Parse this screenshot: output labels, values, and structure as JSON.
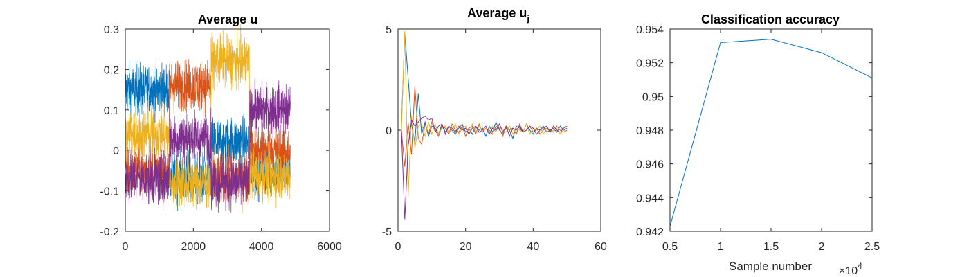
{
  "chart_data": [
    {
      "type": "line",
      "title": "Average u",
      "xlabel": "",
      "ylabel": "",
      "xlim": [
        0,
        6000
      ],
      "ylim": [
        -0.2,
        0.3
      ],
      "xticks": [
        "0",
        "2000",
        "4000",
        "6000"
      ],
      "yticks": [
        "-0.2",
        "-0.1",
        "0",
        "0.1",
        "0.2",
        "0.3"
      ],
      "segments": [
        0,
        1290,
        2520,
        3650,
        4850
      ],
      "noise": 0.045,
      "series": [
        {
          "name": "series 1",
          "color": "#0072BD",
          "levels": [
            0.15,
            -0.07,
            0.02,
            -0.05
          ]
        },
        {
          "name": "series 2",
          "color": "#D95319",
          "levels": [
            -0.05,
            0.16,
            -0.07,
            0.0
          ]
        },
        {
          "name": "series 3",
          "color": "#EDB120",
          "levels": [
            0.04,
            -0.08,
            0.22,
            -0.06
          ]
        },
        {
          "name": "series 4",
          "color": "#7E2F8E",
          "levels": [
            -0.07,
            0.03,
            -0.08,
            0.1
          ]
        }
      ]
    },
    {
      "type": "line",
      "title": "Average u",
      "title_sub": "j",
      "xlabel": "",
      "ylabel": "",
      "xlim": [
        0,
        60
      ],
      "ylim": [
        -5,
        5
      ],
      "xticks": [
        "0",
        "20",
        "40",
        "60"
      ],
      "yticks": [
        "-5",
        "0",
        "5"
      ],
      "x": [
        1,
        2,
        3,
        4,
        5,
        6,
        7,
        8,
        9,
        10,
        11,
        12,
        13,
        14,
        15,
        16,
        17,
        18,
        19,
        20,
        21,
        22,
        23,
        24,
        25,
        26,
        27,
        28,
        29,
        30,
        31,
        32,
        33,
        34,
        35,
        36,
        37,
        38,
        39,
        40,
        41,
        42,
        43,
        44,
        45,
        46,
        47,
        48,
        49,
        50
      ],
      "series": [
        {
          "name": "series 1",
          "color": "#0072BD",
          "values": [
            0.2,
            4.8,
            2.6,
            0.3,
            -0.6,
            1.8,
            -0.2,
            0.4,
            -0.3,
            0.2,
            0.1,
            -0.2,
            0.3,
            -0.1,
            0.2,
            0.0,
            -0.2,
            0.1,
            0.3,
            -0.1,
            0.1,
            -0.2,
            0.2,
            0.0,
            0.1,
            -0.3,
            0.2,
            -0.1,
            0.4,
            0.0,
            -0.2,
            0.1,
            0.0,
            -0.4,
            0.2,
            0.1,
            -0.1,
            0.3,
            0.0,
            -0.2,
            0.1,
            0.0,
            0.2,
            -0.1,
            0.0,
            0.1,
            -0.1,
            0.2,
            0.0,
            0.1
          ]
        },
        {
          "name": "series 2",
          "color": "#D95319",
          "values": [
            0.0,
            -1.8,
            0.4,
            -1.2,
            2.2,
            -0.4,
            -0.7,
            0.3,
            -0.2,
            0.4,
            0.0,
            -0.3,
            0.2,
            0.1,
            -0.2,
            0.3,
            0.0,
            -0.1,
            0.2,
            -0.3,
            0.1,
            0.2,
            -0.2,
            0.3,
            -0.1,
            0.1,
            0.0,
            -0.2,
            0.2,
            0.1,
            -0.3,
            0.2,
            0.0,
            0.1,
            -0.2,
            0.3,
            -0.1,
            0.0,
            0.2,
            -0.1,
            0.1,
            -0.2,
            0.0,
            0.1,
            0.0,
            -0.1,
            0.2,
            0.0,
            -0.1,
            0.0
          ]
        },
        {
          "name": "series 3",
          "color": "#EDB120",
          "values": [
            0.0,
            4.9,
            -3.3,
            0.7,
            -0.9,
            0.2,
            0.3,
            -0.3,
            0.4,
            -0.2,
            0.3,
            -0.2,
            0.1,
            0.2,
            -0.1,
            0.0,
            0.3,
            -0.2,
            0.1,
            0.2,
            -0.2,
            0.3,
            -0.1,
            0.2,
            0.0,
            0.1,
            -0.2,
            0.2,
            -0.1,
            0.3,
            0.0,
            -0.1,
            0.2,
            -0.2,
            0.1,
            0.0,
            -0.1,
            0.3,
            -0.2,
            0.1,
            0.0,
            0.2,
            -0.2,
            0.1,
            -0.1,
            0.0,
            0.1,
            -0.2,
            0.0,
            -0.1
          ]
        },
        {
          "name": "series 4",
          "color": "#7E2F8E",
          "values": [
            0.0,
            -4.4,
            -0.8,
            0.5,
            0.2,
            0.4,
            0.6,
            0.7,
            0.5,
            0.6,
            -0.1,
            0.2,
            0.3,
            -0.2,
            0.2,
            0.1,
            -0.1,
            0.2,
            0.0,
            0.1,
            -0.2,
            0.1,
            0.2,
            -0.1,
            0.0,
            0.2,
            -0.2,
            0.1,
            0.0,
            0.3,
            -0.1,
            0.2,
            -0.3,
            0.1,
            0.0,
            0.2,
            -0.1,
            0.0,
            0.2,
            0.1,
            -0.2,
            0.0,
            0.1,
            0.2,
            -0.1,
            0.2,
            0.0,
            -0.1,
            0.1,
            0.2
          ]
        }
      ]
    },
    {
      "type": "line",
      "title": "Classification accuracy",
      "xlabel": "Sample number",
      "x_exponent": "10",
      "x_exponent_power": "4",
      "ylabel": "",
      "xlim": [
        0.5,
        2.5
      ],
      "ylim": [
        0.942,
        0.954
      ],
      "xticks": [
        "0.5",
        "1",
        "1.5",
        "2",
        "2.5"
      ],
      "yticks": [
        "0.942",
        "0.944",
        "0.946",
        "0.948",
        "0.95",
        "0.952",
        "0.954"
      ],
      "series": [
        {
          "name": "accuracy",
          "color": "#0072BD",
          "x": [
            0.5,
            1.0,
            1.5,
            2.0,
            2.5
          ],
          "values": [
            0.9423,
            0.9532,
            0.9534,
            0.9526,
            0.9511
          ]
        }
      ]
    }
  ]
}
